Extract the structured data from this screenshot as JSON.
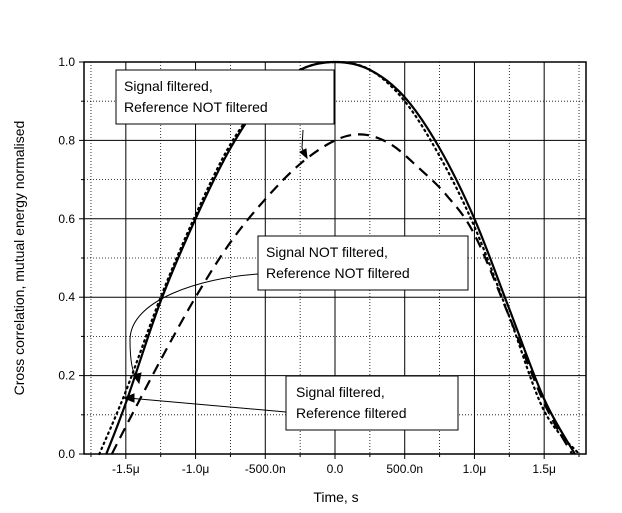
{
  "chart_data": {
    "type": "line",
    "title": "",
    "xlabel": "Time, s",
    "ylabel": "Cross correlation, mutual energy normalised",
    "xlim": [
      -1.8e-06,
      1.8e-06
    ],
    "ylim": [
      0.0,
      1.0
    ],
    "x_ticks": [
      {
        "value": -1.5e-06,
        "label": "-1.5μ"
      },
      {
        "value": -1e-06,
        "label": "-1.0μ"
      },
      {
        "value": -5e-07,
        "label": "-500.0n"
      },
      {
        "value": 0.0,
        "label": "0.0"
      },
      {
        "value": 5e-07,
        "label": "500.0n"
      },
      {
        "value": 1e-06,
        "label": "1.0μ"
      },
      {
        "value": 1.5e-06,
        "label": "1.5μ"
      }
    ],
    "y_ticks": [
      {
        "value": 0.0,
        "label": "0.0"
      },
      {
        "value": 0.2,
        "label": "0.2"
      },
      {
        "value": 0.4,
        "label": "0.4"
      },
      {
        "value": 0.6,
        "label": "0.6"
      },
      {
        "value": 0.8,
        "label": "0.8"
      },
      {
        "value": 1.0,
        "label": "1.0"
      }
    ],
    "grid": true,
    "series": [
      {
        "style": "solid",
        "x": [
          -1.64e-06,
          -1.5e-06,
          -1.25e-06,
          -1e-06,
          -7.5e-07,
          -5e-07,
          -2.5e-07,
          0.0,
          2.5e-07,
          5e-07,
          7.5e-07,
          1e-06,
          1.25e-06,
          1.5e-06,
          1.72e-06
        ],
        "y": [
          0.0,
          0.13,
          0.39,
          0.6,
          0.78,
          0.91,
          0.98,
          1.0,
          0.98,
          0.91,
          0.78,
          0.6,
          0.37,
          0.14,
          0.0
        ]
      },
      {
        "style": "dotted",
        "x": [
          -1.69e-06,
          -1.5e-06,
          -1.25e-06,
          -1e-06,
          -7.5e-07,
          -5e-07,
          -2.5e-07,
          0.0,
          2.5e-07,
          5e-07,
          7.5e-07,
          1e-06,
          1.25e-06,
          1.5e-06,
          1.75e-06
        ],
        "y": [
          0.0,
          0.16,
          0.4,
          0.61,
          0.79,
          0.91,
          0.98,
          1.0,
          0.98,
          0.9,
          0.76,
          0.58,
          0.35,
          0.11,
          0.0
        ]
      },
      {
        "style": "dashed",
        "x": [
          -1.6e-06,
          -1.5e-06,
          -1.25e-06,
          -1e-06,
          -7.5e-07,
          -5e-07,
          -2.5e-07,
          0.0,
          2e-07,
          4e-07,
          6e-07,
          8e-07,
          1e-06,
          1.25e-06,
          1.5e-06,
          1.7e-06
        ],
        "y": [
          0.0,
          0.07,
          0.24,
          0.4,
          0.54,
          0.65,
          0.74,
          0.8,
          0.815,
          0.79,
          0.73,
          0.66,
          0.56,
          0.35,
          0.13,
          0.0
        ]
      }
    ],
    "annotations": [
      {
        "lines": [
          "Signal filtered,",
          "Reference NOT filtered"
        ]
      },
      {
        "lines": [
          "Signal NOT filtered,",
          "Reference NOT filtered"
        ]
      },
      {
        "lines": [
          "Signal filtered,",
          "Reference filtered"
        ]
      }
    ]
  }
}
